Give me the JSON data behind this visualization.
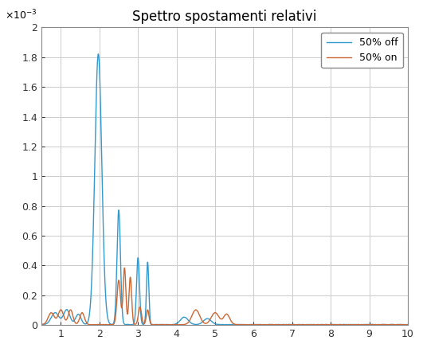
{
  "title": "Spettro spostamenti relativi",
  "xlim": [
    0.5,
    10
  ],
  "ylim": [
    0,
    0.002
  ],
  "xticks": [
    1,
    2,
    3,
    4,
    5,
    6,
    7,
    8,
    9,
    10
  ],
  "yticks": [
    0,
    0.0002,
    0.0004,
    0.0006,
    0.0008,
    0.001,
    0.0012,
    0.0014,
    0.0016,
    0.0018,
    0.002
  ],
  "legend": [
    "50% off",
    "50% on"
  ],
  "color_off": "#3399CC",
  "color_on": "#CC6633",
  "background_color": "#FFFFFF",
  "grid_color": "#CCCCCC"
}
